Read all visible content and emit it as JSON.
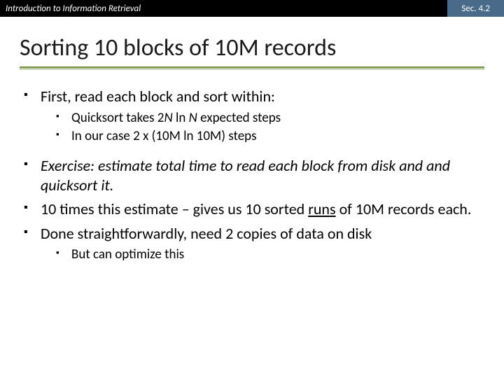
{
  "header": {
    "left": "Introduction to Information Retrieval",
    "right": "Sec. 4.2",
    "bar_bg": "#000000",
    "bar_fg": "#ffffff",
    "right_bg": "#4a6a8a"
  },
  "title": {
    "text": "Sorting 10 blocks of 10M records",
    "underline_color": "#6a8a3a",
    "fontsize": 34
  },
  "bullets": {
    "b1": "First, read each block and sort within:",
    "b1_sub1_a": "Quicksort takes 2",
    "b1_sub1_b": "N",
    "b1_sub1_c": " ln ",
    "b1_sub1_d": "N",
    "b1_sub1_e": " expected steps",
    "b1_sub2": "In our case 2 x (10M ln 10M) steps",
    "b2": "Exercise: estimate total time to read each block from disk and and quicksort it.",
    "b3_a": "10 times this estimate – gives us 10 sorted ",
    "b3_b": "runs",
    "b3_c": " of 10M records each.",
    "b4": "Done straightforwardly, need 2 copies of data on disk",
    "b4_sub1": "But can optimize this"
  },
  "styles": {
    "body_fontsize": 22,
    "sub_fontsize": 19,
    "text_color": "#000000",
    "background": "#ffffff"
  }
}
